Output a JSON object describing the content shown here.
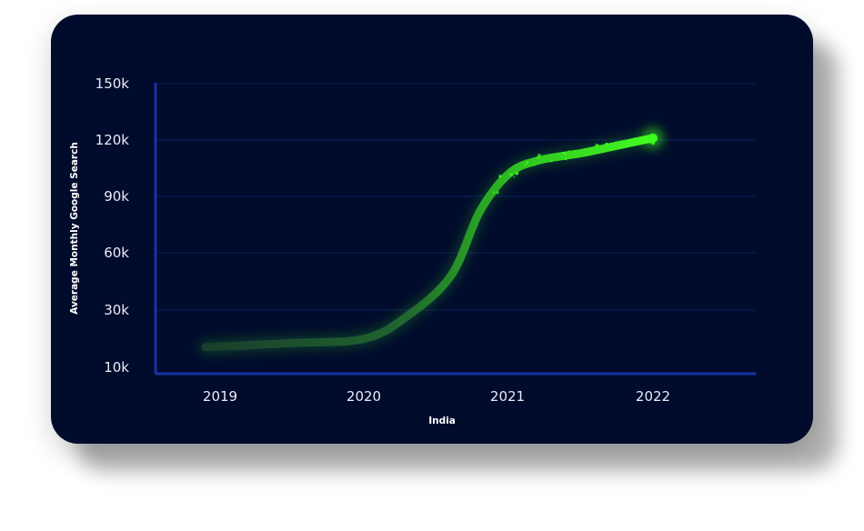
{
  "chart_data": {
    "type": "line",
    "xlabel": "India",
    "ylabel": "Average Monthly Google Search",
    "x_ticks": [
      "2019",
      "2020",
      "2021",
      "2022"
    ],
    "y_ticks": [
      "10k",
      "30k",
      "60k",
      "90k",
      "120k",
      "150k"
    ],
    "ylim": [
      10000,
      150000
    ],
    "grid": true,
    "series": [
      {
        "points": [
          {
            "x": 2018.9,
            "y": 17000
          },
          {
            "x": 2019.5,
            "y": 18500
          },
          {
            "x": 2020.0,
            "y": 20000
          },
          {
            "x": 2020.3,
            "y": 28000
          },
          {
            "x": 2020.6,
            "y": 48000
          },
          {
            "x": 2020.8,
            "y": 82000
          },
          {
            "x": 2021.0,
            "y": 102000
          },
          {
            "x": 2021.2,
            "y": 109000
          },
          {
            "x": 2021.5,
            "y": 113000
          },
          {
            "x": 2021.75,
            "y": 117000
          },
          {
            "x": 2022.0,
            "y": 121000
          }
        ]
      }
    ],
    "colors": {
      "background": "#010b2c",
      "line_start": "#1d4a2e",
      "line_end": "#3dff1a",
      "grid": "#0d1f55",
      "axis": "#1633a8"
    }
  }
}
